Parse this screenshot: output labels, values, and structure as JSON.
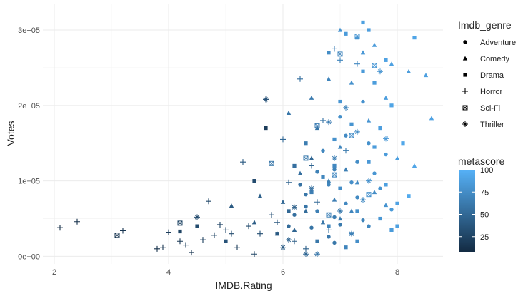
{
  "chart_data": {
    "type": "scatter",
    "title": "",
    "xlabel": "IMDB.Rating",
    "ylabel": "Votes",
    "xlim": [
      1.8,
      8.8
    ],
    "ylim": [
      -10000,
      335000
    ],
    "x_ticks": [
      {
        "value": 2,
        "label": "2"
      },
      {
        "value": 4,
        "label": "4"
      },
      {
        "value": 6,
        "label": "6"
      },
      {
        "value": 8,
        "label": "8"
      }
    ],
    "y_ticks": [
      {
        "value": 0,
        "label": "0e+00"
      },
      {
        "value": 100000,
        "label": "1e+05"
      },
      {
        "value": 200000,
        "label": "2e+05"
      },
      {
        "value": 300000,
        "label": "3e+05"
      }
    ],
    "grid": true,
    "legend_position": "right",
    "shape_legend": {
      "title": "Imdb_genre",
      "items": [
        {
          "label": "Adventure",
          "shape": "circle"
        },
        {
          "label": "Comedy",
          "shape": "triangle"
        },
        {
          "label": "Drama",
          "shape": "square"
        },
        {
          "label": "Horror",
          "shape": "plus"
        },
        {
          "label": "Sci-Fi",
          "shape": "boxed-x"
        },
        {
          "label": "Thriller",
          "shape": "asterisk"
        }
      ]
    },
    "color_legend": {
      "title": "metascore",
      "ticks": [
        {
          "value": 25,
          "label": "25"
        },
        {
          "value": 50,
          "label": "50"
        },
        {
          "value": 75,
          "label": "75"
        },
        {
          "value": 100,
          "label": "100"
        }
      ],
      "range": [
        8,
        100
      ],
      "low_color": "#132b43",
      "high_color": "#56b1f7"
    },
    "series": [
      {
        "name": "Adventure",
        "points": [
          [
            6.6,
            60000,
            66
          ],
          [
            6.8,
            95000,
            70
          ],
          [
            7.1,
            70000,
            72
          ],
          [
            7.3,
            125000,
            75
          ],
          [
            7.0,
            42000,
            62
          ],
          [
            6.4,
            82000,
            60
          ],
          [
            7.5,
            150000,
            78
          ],
          [
            6.9,
            115000,
            68
          ],
          [
            7.2,
            30000,
            65
          ],
          [
            6.2,
            55000,
            55
          ],
          [
            7.7,
            90000,
            80
          ],
          [
            6.7,
            140000,
            71
          ],
          [
            7.4,
            48000,
            69
          ],
          [
            7.0,
            185000,
            77
          ],
          [
            6.5,
            38000,
            58
          ],
          [
            7.3,
            78000,
            73
          ],
          [
            6.8,
            26000,
            61
          ],
          [
            7.6,
            110000,
            81
          ],
          [
            6.3,
            95000,
            57
          ],
          [
            7.1,
            160000,
            74
          ],
          [
            7.9,
            62000,
            84
          ],
          [
            6.9,
            52000,
            64
          ],
          [
            7.4,
            205000,
            79
          ],
          [
            6.6,
            112000,
            67
          ],
          [
            7.2,
            98000,
            76
          ],
          [
            6.1,
            40000,
            52
          ],
          [
            7.8,
            135000,
            85
          ],
          [
            6.9,
            18000,
            60
          ],
          [
            7.5,
            40000,
            72
          ],
          [
            6.4,
            66000,
            59
          ]
        ]
      },
      {
        "name": "Comedy",
        "points": [
          [
            7.0,
            300000,
            80
          ],
          [
            7.3,
            290000,
            82
          ],
          [
            7.6,
            280000,
            85
          ],
          [
            8.5,
            240000,
            88
          ],
          [
            8.6,
            183000,
            90
          ],
          [
            8.2,
            245000,
            86
          ],
          [
            6.1,
            190000,
            60
          ],
          [
            6.5,
            130000,
            50
          ],
          [
            6.8,
            235000,
            70
          ],
          [
            7.4,
            270000,
            83
          ],
          [
            7.8,
            210000,
            87
          ],
          [
            7.2,
            230000,
            78
          ],
          [
            5.1,
            67000,
            40
          ],
          [
            5.6,
            80000,
            45
          ],
          [
            6.3,
            110000,
            55
          ],
          [
            6.6,
            170000,
            58
          ],
          [
            7.1,
            115000,
            66
          ],
          [
            7.6,
            85000,
            75
          ],
          [
            8.0,
            130000,
            88
          ],
          [
            7.0,
            50000,
            62
          ],
          [
            6.2,
            35000,
            48
          ],
          [
            5.5,
            45000,
            42
          ],
          [
            6.9,
            75000,
            65
          ],
          [
            7.3,
            98000,
            74
          ],
          [
            6.7,
            45000,
            60
          ],
          [
            7.8,
            68000,
            80
          ],
          [
            6.4,
            60000,
            53
          ],
          [
            7.5,
            180000,
            81
          ],
          [
            7.0,
            145000,
            71
          ],
          [
            6.8,
            100000,
            67
          ],
          [
            8.3,
            120000,
            92
          ],
          [
            7.9,
            255000,
            89
          ],
          [
            6.5,
            210000,
            63
          ],
          [
            7.2,
            60000,
            70
          ],
          [
            6.0,
            72000,
            50
          ],
          [
            5.9,
            30000,
            46
          ]
        ]
      },
      {
        "name": "Drama",
        "points": [
          [
            7.1,
            295000,
            85
          ],
          [
            7.4,
            310000,
            88
          ],
          [
            8.3,
            290000,
            92
          ],
          [
            7.8,
            260000,
            90
          ],
          [
            7.5,
            300000,
            87
          ],
          [
            6.8,
            270000,
            75
          ],
          [
            7.6,
            230000,
            86
          ],
          [
            7.9,
            200000,
            91
          ],
          [
            8.1,
            150000,
            93
          ],
          [
            7.2,
            175000,
            80
          ],
          [
            6.9,
            120000,
            72
          ],
          [
            7.5,
            125000,
            83
          ],
          [
            7.0,
            90000,
            76
          ],
          [
            7.8,
            95000,
            88
          ],
          [
            8.0,
            70000,
            90
          ],
          [
            6.5,
            85000,
            65
          ],
          [
            7.3,
            60000,
            77
          ],
          [
            6.8,
            40000,
            70
          ],
          [
            7.7,
            50000,
            82
          ],
          [
            5.7,
            170000,
            20
          ],
          [
            5.5,
            100000,
            30
          ],
          [
            6.2,
            120000,
            55
          ],
          [
            4.2,
            33000,
            25
          ],
          [
            4.5,
            40000,
            30
          ],
          [
            5.0,
            20000,
            35
          ],
          [
            5.9,
            30000,
            40
          ],
          [
            6.6,
            20000,
            60
          ],
          [
            7.1,
            12000,
            70
          ],
          [
            7.9,
            35000,
            85
          ],
          [
            8.2,
            80000,
            95
          ],
          [
            6.9,
            155000,
            78
          ],
          [
            7.4,
            245000,
            84
          ],
          [
            6.1,
            60000,
            50
          ],
          [
            7.6,
            145000,
            85
          ],
          [
            7.0,
            205000,
            81
          ],
          [
            6.4,
            150000,
            64
          ],
          [
            8.0,
            40000,
            89
          ],
          [
            7.3,
            20000,
            76
          ],
          [
            6.7,
            105000,
            71
          ],
          [
            7.7,
            170000,
            87
          ]
        ]
      },
      {
        "name": "Horror",
        "points": [
          [
            2.1,
            38000,
            10
          ],
          [
            2.4,
            46000,
            12
          ],
          [
            3.2,
            34000,
            15
          ],
          [
            3.8,
            10000,
            12
          ],
          [
            3.9,
            12000,
            15
          ],
          [
            4.0,
            32000,
            20
          ],
          [
            4.2,
            20000,
            18
          ],
          [
            4.4,
            5000,
            15
          ],
          [
            4.6,
            22000,
            22
          ],
          [
            4.8,
            28000,
            25
          ],
          [
            5.0,
            35000,
            28
          ],
          [
            5.2,
            12000,
            20
          ],
          [
            5.4,
            40000,
            30
          ],
          [
            5.6,
            30000,
            32
          ],
          [
            5.8,
            55000,
            35
          ],
          [
            5.3,
            125000,
            40
          ],
          [
            4.7,
            73000,
            28
          ],
          [
            5.7,
            208000,
            30
          ],
          [
            6.0,
            155000,
            50
          ],
          [
            6.3,
            235000,
            55
          ],
          [
            6.5,
            120000,
            48
          ],
          [
            6.9,
            275000,
            65
          ],
          [
            7.0,
            260000,
            70
          ],
          [
            7.3,
            255000,
            72
          ],
          [
            6.2,
            20000,
            42
          ],
          [
            6.6,
            72000,
            50
          ],
          [
            6.8,
            35000,
            55
          ],
          [
            7.1,
            140000,
            62
          ],
          [
            6.4,
            10000,
            45
          ],
          [
            5.9,
            45000,
            38
          ],
          [
            4.9,
            42000,
            26
          ],
          [
            5.1,
            30000,
            30
          ],
          [
            6.1,
            98000,
            46
          ],
          [
            6.7,
            180000,
            58
          ],
          [
            5.5,
            3000,
            25
          ],
          [
            4.3,
            15000,
            18
          ]
        ]
      },
      {
        "name": "Sci-Fi",
        "points": [
          [
            3.1,
            28000,
            15
          ],
          [
            4.2,
            44000,
            25
          ],
          [
            5.8,
            123000,
            60
          ],
          [
            6.6,
            173000,
            65
          ],
          [
            7.0,
            268000,
            70
          ],
          [
            7.3,
            292000,
            80
          ],
          [
            7.6,
            253000,
            82
          ],
          [
            6.9,
            108000,
            72
          ],
          [
            7.2,
            160000,
            76
          ],
          [
            6.4,
            130000,
            62
          ],
          [
            7.5,
            82000,
            78
          ],
          [
            6.8,
            55000,
            68
          ]
        ]
      },
      {
        "name": "Thriller",
        "points": [
          [
            4.5,
            52000,
            30
          ],
          [
            5.7,
            208000,
            35
          ],
          [
            6.1,
            22000,
            48
          ],
          [
            6.4,
            3000,
            50
          ],
          [
            6.6,
            3000,
            60
          ],
          [
            6.8,
            178000,
            65
          ],
          [
            7.1,
            197000,
            70
          ],
          [
            7.7,
            245000,
            80
          ],
          [
            7.3,
            165000,
            75
          ],
          [
            7.0,
            60000,
            62
          ],
          [
            7.5,
            100000,
            78
          ],
          [
            6.5,
            90000,
            55
          ],
          [
            7.2,
            30000,
            68
          ],
          [
            7.8,
            156000,
            83
          ],
          [
            6.2,
            65000,
            45
          ],
          [
            6.9,
            130000,
            66
          ],
          [
            7.4,
            75000,
            73
          ],
          [
            6.0,
            12000,
            40
          ]
        ]
      }
    ]
  }
}
